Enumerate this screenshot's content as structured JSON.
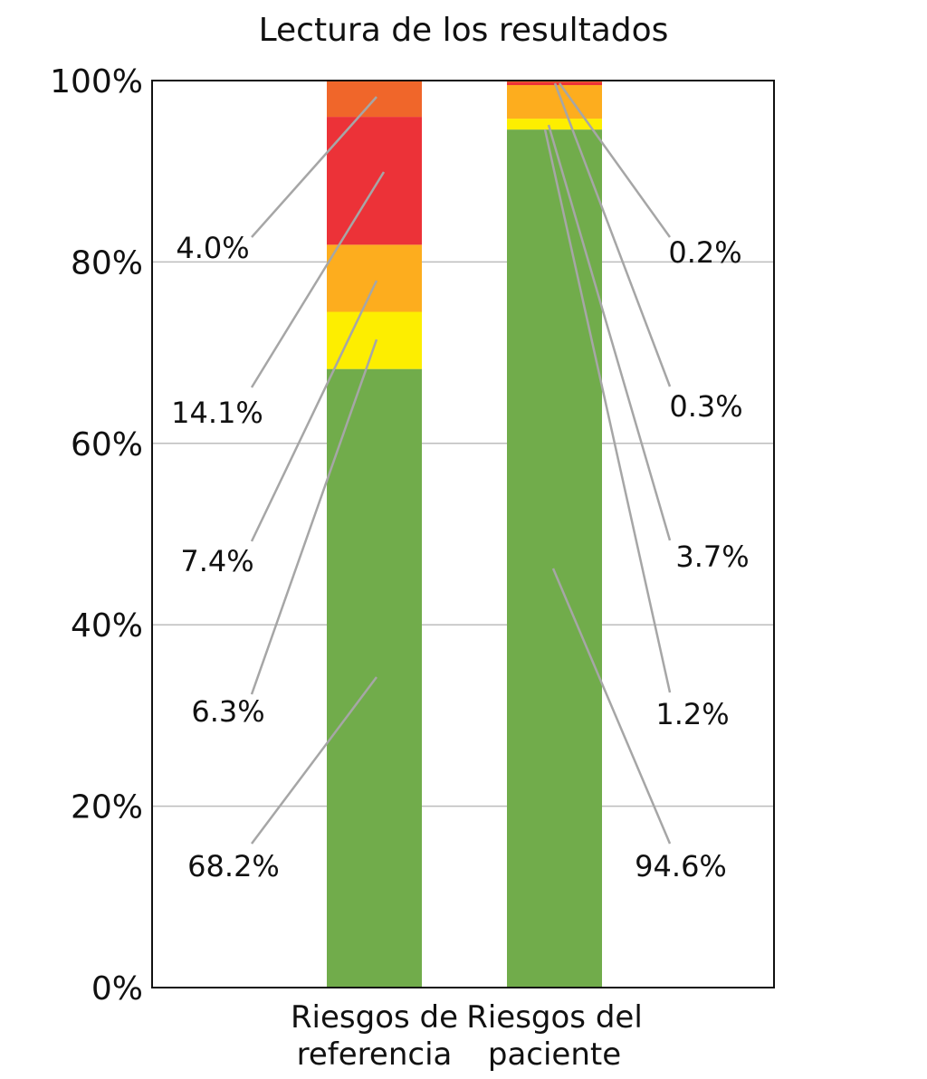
{
  "chart_data": {
    "type": "bar",
    "stacked": true,
    "title": "Lectura de los resultados",
    "categories": [
      [
        "Riesgos de",
        "referencia"
      ],
      [
        "Riesgos del",
        "paciente"
      ]
    ],
    "ylim": [
      0,
      100
    ],
    "yticks": [
      "0%",
      "20%",
      "40%",
      "60%",
      "80%",
      "100%"
    ],
    "ytick_values": [
      0,
      20,
      40,
      60,
      80,
      100
    ],
    "grid": "horizontal",
    "colors": [
      "#71ac4b",
      "#fdee00",
      "#fdad1e",
      "#ec3238",
      "#f0662a"
    ],
    "bars": [
      {
        "segments": [
          68.2,
          6.3,
          7.4,
          14.1,
          4.0
        ],
        "labels": [
          "68.2%",
          "6.3%",
          "7.4%",
          "14.1%",
          "4.0%"
        ]
      },
      {
        "segments": [
          94.6,
          1.2,
          3.7,
          0.3,
          0.2
        ],
        "labels": [
          "94.6%",
          "1.2%",
          "3.7%",
          "0.3%",
          "0.2%"
        ]
      }
    ]
  }
}
